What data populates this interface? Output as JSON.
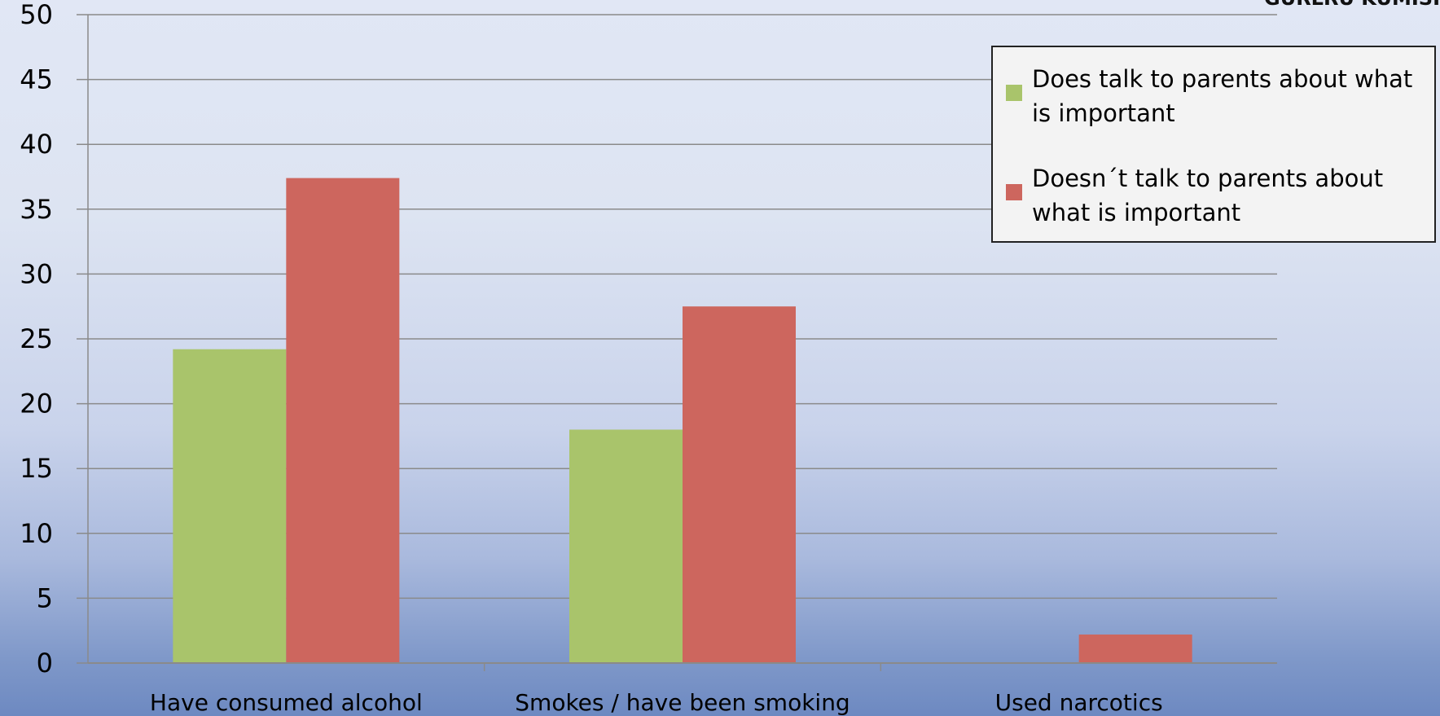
{
  "corner_text": "GURLRU KUMISI",
  "colors": {
    "series_1": "#a9c46b",
    "series_2": "#cd665e",
    "grid": "#8a8a8a"
  },
  "chart_data": {
    "type": "bar",
    "categories": [
      "Have consumed alcohol",
      "Smokes / have been smoking",
      "Used narcotics"
    ],
    "series": [
      {
        "name": "Does talk to parents about what is important",
        "values": [
          24.2,
          18.0,
          0
        ]
      },
      {
        "name": "Doesn´t talk to parents about what is important",
        "values": [
          37.4,
          27.5,
          2.2
        ]
      }
    ],
    "ylim": [
      0,
      50
    ],
    "yticks": [
      "0",
      "5",
      "10",
      "15",
      "20",
      "25",
      "30",
      "35",
      "40",
      "45",
      "50"
    ],
    "grid": true,
    "legend_position": "top-right",
    "title": "",
    "xlabel": "",
    "ylabel": ""
  }
}
